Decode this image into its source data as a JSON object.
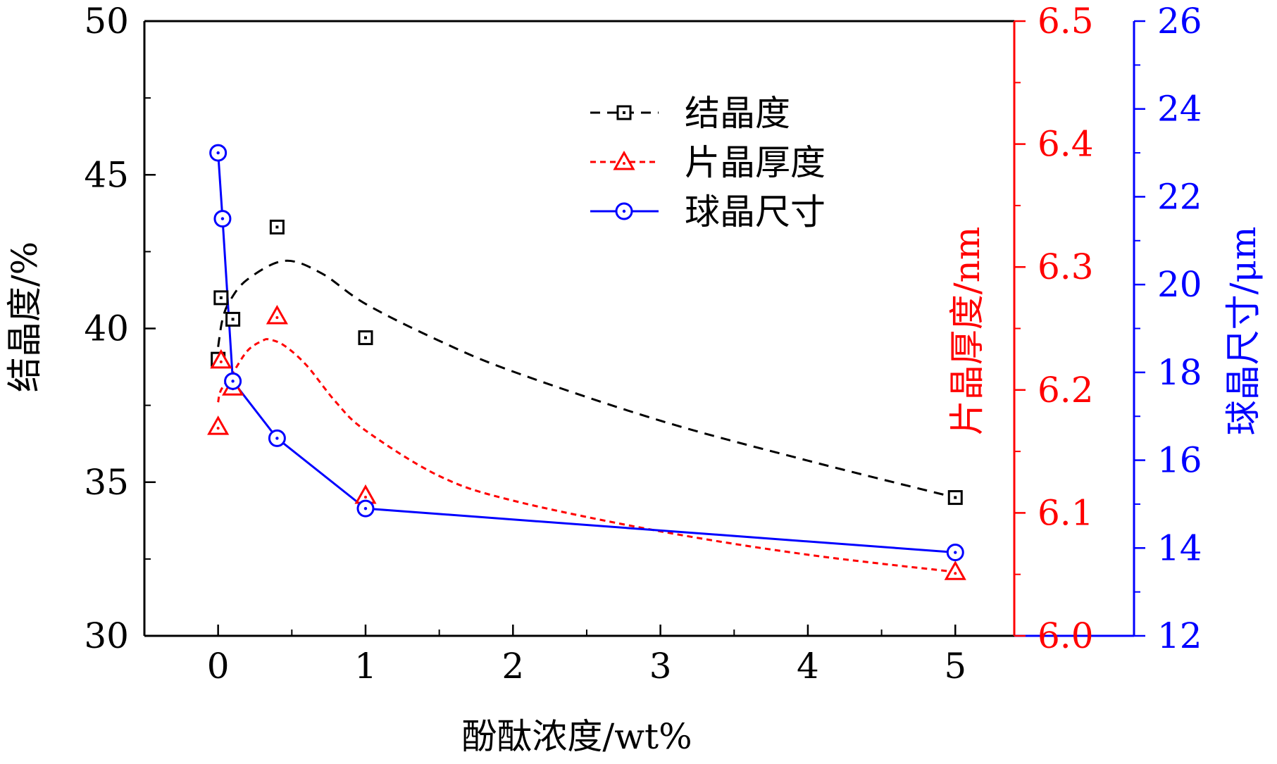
{
  "chart_data": {
    "type": "scatter",
    "xlabel": "酚酞浓度/wt%",
    "x_ticks": [
      0,
      1,
      2,
      3,
      4,
      5
    ],
    "xlim": [
      -0.5,
      5.4
    ],
    "axes": {
      "left": {
        "label": "结晶度/%",
        "color": "#000000",
        "ylim": [
          30,
          50
        ],
        "ticks": [
          30,
          35,
          40,
          45,
          50
        ],
        "tick_labels": [
          "30",
          "35",
          "40",
          "45",
          "50"
        ]
      },
      "right1": {
        "label": "片晶厚度/nm",
        "color": "#ff0000",
        "ylim": [
          6.0,
          6.5
        ],
        "ticks": [
          6.0,
          6.1,
          6.2,
          6.3,
          6.4,
          6.5
        ],
        "tick_labels": [
          "6.0",
          "6.1",
          "6.2",
          "6.3",
          "6.4",
          "6.5"
        ]
      },
      "right2": {
        "label": "球晶尺寸/μm",
        "color": "#0000ff",
        "ylim": [
          12,
          26
        ],
        "ticks": [
          12,
          14,
          16,
          18,
          20,
          22,
          24,
          26
        ],
        "tick_labels": [
          "12",
          "14",
          "16",
          "18",
          "20",
          "22",
          "24",
          "26"
        ]
      }
    },
    "legend_position": "top-center",
    "series": [
      {
        "name": "结晶度",
        "axis": "left",
        "color": "#000000",
        "marker": "square",
        "line_style": "dashed-fit",
        "x": [
          0,
          0.02,
          0.1,
          0.4,
          1,
          5
        ],
        "y": [
          39.0,
          41.0,
          40.3,
          43.3,
          39.7,
          34.5
        ],
        "fit_x": [
          0.0,
          0.03,
          0.08,
          0.2,
          0.45,
          0.7,
          1.0,
          1.5,
          2.0,
          3.0,
          4.0,
          5.0
        ],
        "fit_y": [
          39.4,
          40.3,
          40.9,
          41.6,
          42.2,
          41.8,
          40.8,
          39.6,
          38.6,
          37.0,
          35.7,
          34.5
        ]
      },
      {
        "name": "片晶厚度",
        "axis": "right1",
        "color": "#ff0000",
        "marker": "triangle",
        "line_style": "dotted-fit",
        "x": [
          0,
          0.02,
          0.1,
          0.4,
          1,
          5
        ],
        "y": [
          6.17,
          6.224,
          6.202,
          6.26,
          6.114,
          6.052
        ],
        "fit_x": [
          0.0,
          0.02,
          0.1,
          0.2,
          0.3,
          0.35,
          0.45,
          0.6,
          0.8,
          1.0,
          1.5,
          2.0,
          3.0,
          4.0,
          5.0
        ],
        "fit_y": [
          6.19,
          6.2,
          6.214,
          6.232,
          6.24,
          6.241,
          6.236,
          6.22,
          6.19,
          6.167,
          6.13,
          6.11,
          6.085,
          6.066,
          6.052
        ]
      },
      {
        "name": "球晶尺寸",
        "axis": "right2",
        "color": "#0000ff",
        "marker": "circle-dot",
        "line_style": "solid",
        "x": [
          0,
          0.03,
          0.1,
          0.4,
          1,
          5
        ],
        "y": [
          23.0,
          21.5,
          17.8,
          16.5,
          14.9,
          13.9
        ]
      }
    ]
  }
}
